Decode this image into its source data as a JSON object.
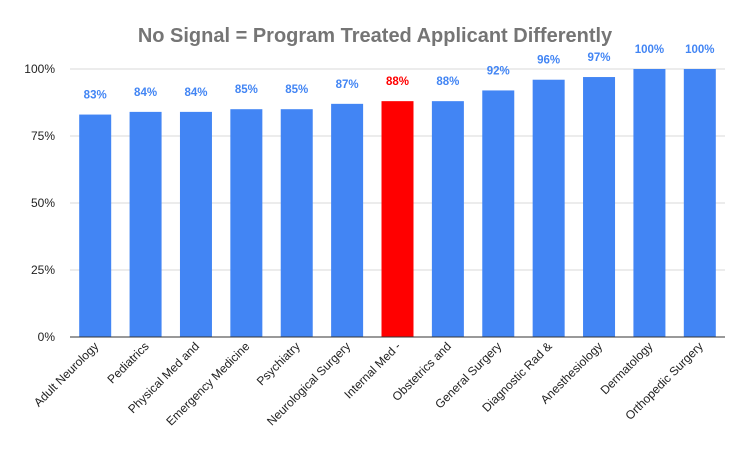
{
  "chart_data": {
    "type": "bar",
    "title": "No Signal = Program Treated Applicant Differently",
    "xlabel": "",
    "ylabel": "",
    "ylim": [
      0,
      100
    ],
    "yticks": [
      "0%",
      "25%",
      "50%",
      "75%",
      "100%"
    ],
    "ytick_values": [
      0,
      25,
      50,
      75,
      100
    ],
    "grid": true,
    "legend": "none",
    "categories": [
      "Adult Neurology",
      "Pediatrics",
      "Physical Med and",
      "Emergency Medicine",
      "Psychiatry",
      "Neurological Surgery",
      "Internal Med -",
      "Obstetrics and",
      "General Surgery",
      "Diagnostic Rad &",
      "Anesthesiology",
      "Dermatology",
      "Orthopedic Surgery"
    ],
    "values": [
      83,
      84,
      84,
      85,
      85,
      87,
      88,
      88,
      92,
      96,
      97,
      100,
      100
    ],
    "data_labels": [
      "83%",
      "84%",
      "84%",
      "85%",
      "85%",
      "87%",
      "88%",
      "88%",
      "92%",
      "96%",
      "97%",
      "100%",
      "100%"
    ],
    "highlight_index": 6,
    "colors": {
      "bar": "#4285f4",
      "highlight_bar": "#ff0000",
      "label": "#4285f4",
      "highlight_label": "#ff0000",
      "title": "#757575"
    }
  }
}
